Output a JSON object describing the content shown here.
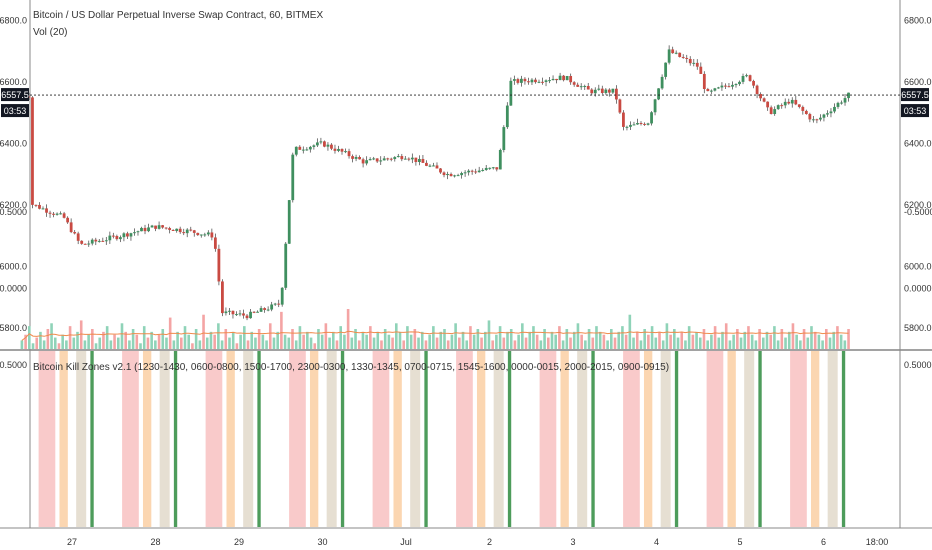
{
  "header": {
    "title": "Bitcoin / US Dollar Perpetual Inverse Swap Contract, 60, BITMEX",
    "volume_study": "Vol (20)",
    "indicator_title": "Bitcoin Kill Zones v2.1 (1230-1430, 0600-0800, 1500-1700, 2300-0300, 1330-1345, 0700-0715, 1545-1600, 0000-0015, 2000-2015, 0900-0915)"
  },
  "price_badge": {
    "price": "6557.5",
    "countdown": "03:53"
  },
  "colors": {
    "up": "#3f8f5f",
    "down": "#c94a42",
    "wick": "#555555",
    "vol_up": "#8fd3b8",
    "vol_down": "#f4a4a4",
    "vol_ma": "#f08a4b",
    "zone_red": "#f8c4c4",
    "zone_orange": "#fbd2a8",
    "zone_tan": "#e3dccd",
    "zone_green": "#2e8b3e",
    "badge_bg": "#131722",
    "badge_text": "#ffffff"
  },
  "chart_data": [
    {
      "type": "candlestick",
      "yticks": [
        "6800.0",
        "6600.0",
        "6400.0",
        "6200.0",
        "6000.0",
        "5800.0"
      ],
      "ylim": [
        5750,
        6850
      ],
      "xticks": [
        "27",
        "28",
        "29",
        "30",
        "Jul",
        "2",
        "3",
        "4",
        "5",
        "6",
        "18:00"
      ],
      "last_price": 6557.5,
      "anchors": [
        {
          "day": 0.0,
          "price": 6205
        },
        {
          "day": 0.4,
          "price": 6160
        },
        {
          "day": 0.6,
          "price": 6070
        },
        {
          "day": 1.0,
          "price": 6095
        },
        {
          "day": 1.5,
          "price": 6130
        },
        {
          "day": 1.9,
          "price": 6115
        },
        {
          "day": 2.2,
          "price": 6100
        },
        {
          "day": 2.3,
          "price": 5850
        },
        {
          "day": 2.6,
          "price": 5840
        },
        {
          "day": 3.0,
          "price": 5880
        },
        {
          "day": 3.15,
          "price": 6380
        },
        {
          "day": 3.5,
          "price": 6400
        },
        {
          "day": 4.0,
          "price": 6340
        },
        {
          "day": 4.5,
          "price": 6360
        },
        {
          "day": 5.0,
          "price": 6300
        },
        {
          "day": 5.6,
          "price": 6320
        },
        {
          "day": 5.75,
          "price": 6600
        },
        {
          "day": 6.4,
          "price": 6615
        },
        {
          "day": 6.7,
          "price": 6570
        },
        {
          "day": 7.0,
          "price": 6570
        },
        {
          "day": 7.1,
          "price": 6450
        },
        {
          "day": 7.4,
          "price": 6470
        },
        {
          "day": 7.65,
          "price": 6700
        },
        {
          "day": 8.0,
          "price": 6650
        },
        {
          "day": 8.1,
          "price": 6560
        },
        {
          "day": 8.6,
          "price": 6620
        },
        {
          "day": 8.85,
          "price": 6500
        },
        {
          "day": 9.1,
          "price": 6540
        },
        {
          "day": 9.4,
          "price": 6470
        },
        {
          "day": 9.8,
          "price": 6557.5
        }
      ]
    },
    {
      "type": "bar",
      "series": [
        {
          "values": [
            3,
            5,
            8,
            2,
            4,
            6,
            3,
            7,
            9,
            4,
            2,
            5,
            3,
            8,
            4,
            6,
            10,
            3,
            5,
            7,
            2,
            4,
            6,
            8,
            3,
            5,
            4,
            9,
            6,
            3,
            7,
            5,
            2,
            8,
            4,
            6,
            3,
            5,
            7,
            4,
            11,
            3,
            6,
            4,
            8,
            5,
            2,
            7,
            3,
            12,
            4,
            6,
            5,
            9,
            3,
            7,
            4,
            6,
            2,
            5,
            8,
            3,
            6,
            4,
            7,
            5,
            3,
            9,
            4,
            6,
            13,
            5,
            4,
            7,
            3,
            8,
            5,
            6,
            4,
            2,
            7,
            5,
            9,
            4,
            6,
            3,
            8,
            5,
            14,
            4,
            7,
            3,
            6,
            5,
            8,
            4,
            6,
            3,
            7,
            5,
            4,
            9,
            6,
            3,
            8,
            5,
            7,
            4,
            6,
            3,
            5,
            8,
            4,
            6,
            7,
            3,
            5,
            9,
            4,
            6,
            3,
            8,
            5,
            7,
            4,
            6,
            10,
            3,
            5,
            8,
            4,
            6,
            7,
            3,
            5,
            9,
            4,
            6,
            8,
            5,
            3,
            7,
            4,
            6,
            5,
            8,
            3,
            7,
            4,
            6,
            9,
            5,
            3,
            7,
            4,
            8,
            6,
            5,
            3,
            7,
            4,
            6,
            8,
            5,
            12,
            4,
            6,
            3,
            7,
            5,
            8,
            4,
            6,
            3,
            9,
            5,
            7,
            4,
            6,
            3,
            8,
            5,
            6,
            4,
            7,
            3,
            5,
            8,
            4,
            6,
            9,
            3,
            5,
            7,
            4,
            6,
            8,
            5,
            3,
            7,
            4,
            6,
            5,
            8,
            3,
            7,
            4,
            6,
            9,
            5,
            3,
            7,
            4,
            8,
            6,
            5,
            3,
            7,
            4,
            6,
            8,
            5,
            3,
            7
          ]
        }
      ]
    },
    {
      "type": "bar",
      "yticks": [
        "0.5000",
        "0.0000",
        "-0.5000"
      ],
      "zones": [
        {
          "day": 0.1,
          "w": 0.2,
          "kind": "red"
        },
        {
          "day": 0.35,
          "w": 0.1,
          "kind": "orange"
        },
        {
          "day": 0.55,
          "w": 0.12,
          "kind": "tan"
        },
        {
          "day": 0.72,
          "w": 0.04,
          "kind": "green"
        },
        {
          "day": 1.1,
          "w": 0.2,
          "kind": "red"
        },
        {
          "day": 1.35,
          "w": 0.1,
          "kind": "orange"
        },
        {
          "day": 1.55,
          "w": 0.12,
          "kind": "tan"
        },
        {
          "day": 1.72,
          "w": 0.04,
          "kind": "green"
        },
        {
          "day": 2.1,
          "w": 0.2,
          "kind": "red"
        },
        {
          "day": 2.35,
          "w": 0.1,
          "kind": "orange"
        },
        {
          "day": 2.55,
          "w": 0.12,
          "kind": "tan"
        },
        {
          "day": 2.72,
          "w": 0.04,
          "kind": "green"
        },
        {
          "day": 3.1,
          "w": 0.2,
          "kind": "red"
        },
        {
          "day": 3.35,
          "w": 0.1,
          "kind": "orange"
        },
        {
          "day": 3.55,
          "w": 0.12,
          "kind": "tan"
        },
        {
          "day": 3.72,
          "w": 0.04,
          "kind": "green"
        },
        {
          "day": 4.1,
          "w": 0.2,
          "kind": "red"
        },
        {
          "day": 4.35,
          "w": 0.1,
          "kind": "orange"
        },
        {
          "day": 4.55,
          "w": 0.12,
          "kind": "tan"
        },
        {
          "day": 4.72,
          "w": 0.04,
          "kind": "green"
        },
        {
          "day": 5.1,
          "w": 0.2,
          "kind": "red"
        },
        {
          "day": 5.35,
          "w": 0.1,
          "kind": "orange"
        },
        {
          "day": 5.55,
          "w": 0.12,
          "kind": "tan"
        },
        {
          "day": 5.72,
          "w": 0.04,
          "kind": "green"
        },
        {
          "day": 6.1,
          "w": 0.2,
          "kind": "red"
        },
        {
          "day": 6.35,
          "w": 0.1,
          "kind": "orange"
        },
        {
          "day": 6.55,
          "w": 0.12,
          "kind": "tan"
        },
        {
          "day": 6.72,
          "w": 0.04,
          "kind": "green"
        },
        {
          "day": 7.1,
          "w": 0.2,
          "kind": "red"
        },
        {
          "day": 7.35,
          "w": 0.1,
          "kind": "orange"
        },
        {
          "day": 7.55,
          "w": 0.12,
          "kind": "tan"
        },
        {
          "day": 7.72,
          "w": 0.04,
          "kind": "green"
        },
        {
          "day": 8.1,
          "w": 0.2,
          "kind": "red"
        },
        {
          "day": 8.35,
          "w": 0.1,
          "kind": "orange"
        },
        {
          "day": 8.55,
          "w": 0.12,
          "kind": "tan"
        },
        {
          "day": 8.72,
          "w": 0.04,
          "kind": "green"
        },
        {
          "day": 9.1,
          "w": 0.2,
          "kind": "red"
        },
        {
          "day": 9.35,
          "w": 0.1,
          "kind": "orange"
        },
        {
          "day": 9.55,
          "w": 0.12,
          "kind": "tan"
        },
        {
          "day": 9.72,
          "w": 0.04,
          "kind": "green"
        }
      ]
    }
  ]
}
